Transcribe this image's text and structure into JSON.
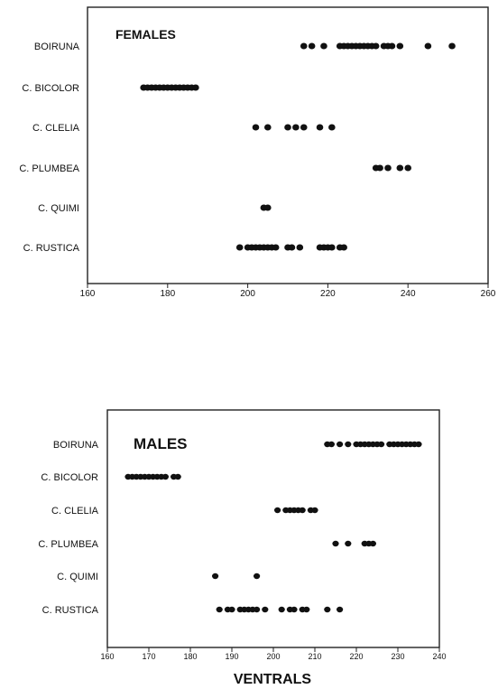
{
  "chart_data": [
    {
      "type": "scatter",
      "title": "FEMALES",
      "xlabel": "",
      "xlim": [
        160,
        260
      ],
      "xticks": [
        "160",
        "180",
        "200",
        "220",
        "240",
        "260"
      ],
      "categories": [
        "BOIRUNA",
        "C. BICOLOR",
        "C. CLELIA",
        "C. PLUMBEA",
        "C. QUIMI",
        "C. RUSTICA"
      ],
      "values": {
        "BOIRUNA": [
          214,
          216,
          219,
          223,
          224,
          225,
          226,
          227,
          228,
          229,
          230,
          231,
          232,
          234,
          235,
          236,
          238,
          245,
          251
        ],
        "C. BICOLOR": [
          174,
          175,
          176,
          177,
          178,
          179,
          180,
          181,
          182,
          183,
          184,
          185,
          186,
          187
        ],
        "C. CLELIA": [
          202,
          205,
          210,
          212,
          214,
          218,
          221
        ],
        "C. PLUMBEA": [
          232,
          233,
          235,
          238,
          240
        ],
        "C. QUIMI": [
          204,
          205
        ],
        "C. RUSTICA": [
          198,
          200,
          201,
          202,
          203,
          204,
          205,
          206,
          207,
          210,
          211,
          213,
          218,
          219,
          220,
          221,
          223,
          224
        ]
      },
      "grid": false
    },
    {
      "type": "scatter",
      "title": "MALES",
      "xlabel": "VENTRALS",
      "xlim": [
        160,
        240
      ],
      "xticks": [
        "160",
        "170",
        "180",
        "190",
        "200",
        "210",
        "220",
        "230",
        "240"
      ],
      "categories": [
        "BOIRUNA",
        "C. BICOLOR",
        "C. CLELIA",
        "C. PLUMBEA",
        "C. QUIMI",
        "C. RUSTICA"
      ],
      "values": {
        "BOIRUNA": [
          213,
          214,
          216,
          218,
          220,
          221,
          222,
          223,
          224,
          225,
          226,
          228,
          229,
          230,
          231,
          232,
          233,
          234,
          235
        ],
        "C. BICOLOR": [
          165,
          166,
          167,
          168,
          169,
          170,
          171,
          172,
          173,
          174,
          176,
          177
        ],
        "C. CLELIA": [
          201,
          203,
          204,
          205,
          206,
          207,
          209,
          210
        ],
        "C. PLUMBEA": [
          215,
          218,
          222,
          223,
          224
        ],
        "C. QUIMI": [
          186,
          196
        ],
        "C. RUSTICA": [
          187,
          189,
          190,
          192,
          193,
          194,
          195,
          196,
          198,
          202,
          204,
          205,
          207,
          208,
          213,
          216
        ]
      },
      "grid": false
    }
  ]
}
